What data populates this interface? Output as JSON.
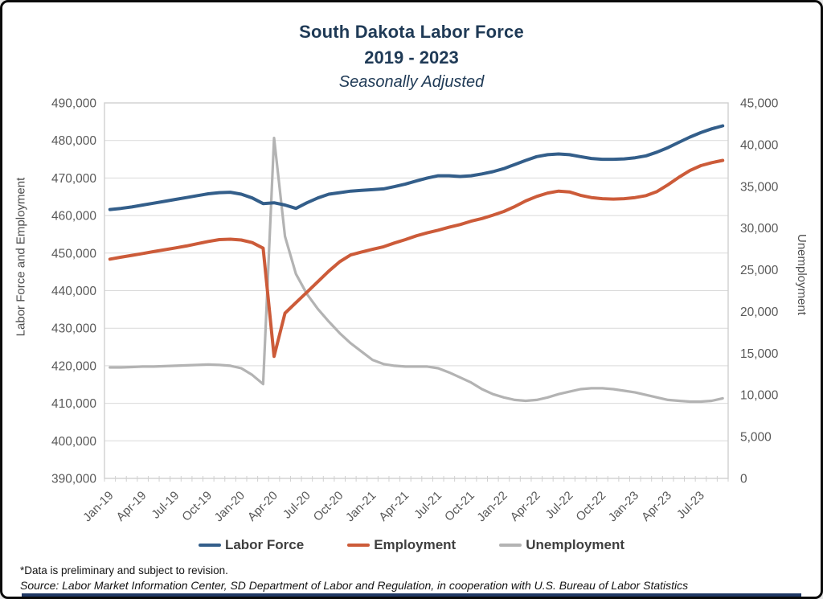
{
  "figure": {
    "title_line1": "South Dakota Labor Force",
    "title_line2": "2019 - 2023",
    "title_line3": "Seasonally Adjusted",
    "title_color": "#1F3A56",
    "footnote": "*Data is preliminary and subject to revision.",
    "source": "Source: Labor Market Information Center, SD Department of Labor and Regulation, in cooperation with U.S. Bureau of Labor Statistics",
    "accent_bar_color": "#1F3864"
  },
  "chart_data": {
    "type": "line",
    "title": "South Dakota Labor Force 2019 - 2023, Seasonally Adjusted",
    "categories": [
      "Jan-19",
      "Feb-19",
      "Mar-19",
      "Apr-19",
      "May-19",
      "Jun-19",
      "Jul-19",
      "Aug-19",
      "Sep-19",
      "Oct-19",
      "Nov-19",
      "Dec-19",
      "Jan-20",
      "Feb-20",
      "Mar-20",
      "Apr-20",
      "May-20",
      "Jun-20",
      "Jul-20",
      "Aug-20",
      "Sep-20",
      "Oct-20",
      "Nov-20",
      "Dec-20",
      "Jan-21",
      "Feb-21",
      "Mar-21",
      "Apr-21",
      "May-21",
      "Jun-21",
      "Jul-21",
      "Aug-21",
      "Sep-21",
      "Oct-21",
      "Nov-21",
      "Dec-21",
      "Jan-22",
      "Feb-22",
      "Mar-22",
      "Apr-22",
      "May-22",
      "Jun-22",
      "Jul-22",
      "Aug-22",
      "Sep-22",
      "Oct-22",
      "Nov-22",
      "Dec-22",
      "Jan-23",
      "Feb-23",
      "Mar-23",
      "Apr-23",
      "May-23",
      "Jun-23",
      "Jul-23",
      "Aug-23",
      "Sep-23"
    ],
    "x_tick_step": 3,
    "x_tick_labels": [
      "Jan-19",
      "Apr-19",
      "Jul-19",
      "Oct-19",
      "Jan-20",
      "Apr-20",
      "Jul-20",
      "Oct-20",
      "Jan-21",
      "Apr-21",
      "Jul-21",
      "Oct-21",
      "Jan-22",
      "Apr-22",
      "Jul-22",
      "Oct-22",
      "Jan-23",
      "Apr-23",
      "Jul-23"
    ],
    "series": [
      {
        "name": "Labor Force",
        "axis": "left",
        "color": "#335E8A",
        "values": [
          461600,
          461900,
          462300,
          462800,
          463300,
          463800,
          464300,
          464800,
          465300,
          465800,
          466100,
          466200,
          465700,
          464700,
          463200,
          463400,
          462800,
          461900,
          463400,
          464700,
          465700,
          466100,
          466500,
          466700,
          466900,
          467100,
          467700,
          468400,
          469200,
          470000,
          470600,
          470600,
          470400,
          470600,
          471100,
          471700,
          472500,
          473600,
          474700,
          475700,
          476200,
          476400,
          476200,
          475700,
          475200,
          475000,
          475000,
          475100,
          475400,
          475900,
          476900,
          478100,
          479500,
          480900,
          482100,
          483100,
          483900
        ]
      },
      {
        "name": "Employment",
        "axis": "left",
        "color": "#CC5B39",
        "values": [
          448400,
          448900,
          449400,
          449900,
          450400,
          450900,
          451400,
          451900,
          452500,
          453100,
          453600,
          453700,
          453500,
          452800,
          451300,
          422500,
          434000,
          436800,
          439600,
          442400,
          445200,
          447700,
          449500,
          450300,
          451000,
          451700,
          452700,
          453600,
          454600,
          455400,
          456100,
          456900,
          457600,
          458500,
          459200,
          460100,
          461100,
          462400,
          463900,
          465100,
          466000,
          466500,
          466300,
          465400,
          464800,
          464500,
          464400,
          464500,
          464800,
          465300,
          466400,
          468200,
          470200,
          472000,
          473300,
          474100,
          474700
        ]
      },
      {
        "name": "Unemployment",
        "axis": "right",
        "color": "#B3B3B3",
        "values": [
          13300,
          13300,
          13350,
          13400,
          13400,
          13450,
          13500,
          13550,
          13600,
          13650,
          13600,
          13500,
          13200,
          12400,
          11300,
          40800,
          29000,
          24500,
          22100,
          20300,
          18800,
          17400,
          16200,
          15200,
          14200,
          13700,
          13500,
          13400,
          13400,
          13400,
          13200,
          12700,
          12100,
          11500,
          10700,
          10100,
          9700,
          9400,
          9300,
          9400,
          9700,
          10100,
          10400,
          10700,
          10800,
          10800,
          10700,
          10500,
          10300,
          10000,
          9700,
          9400,
          9300,
          9200,
          9200,
          9300,
          9600
        ]
      }
    ],
    "left_axis": {
      "title": "Labor Force and Employment",
      "min": 390000,
      "max": 490000,
      "step": 10000
    },
    "right_axis": {
      "title": "Unemployment",
      "min": 0,
      "max": 45000,
      "step": 5000
    },
    "grid": true,
    "legend_position": "bottom",
    "grid_color": "#D9D9D9",
    "axis_line_color": "#D0D0D0",
    "tick_label_color": "#595959"
  }
}
